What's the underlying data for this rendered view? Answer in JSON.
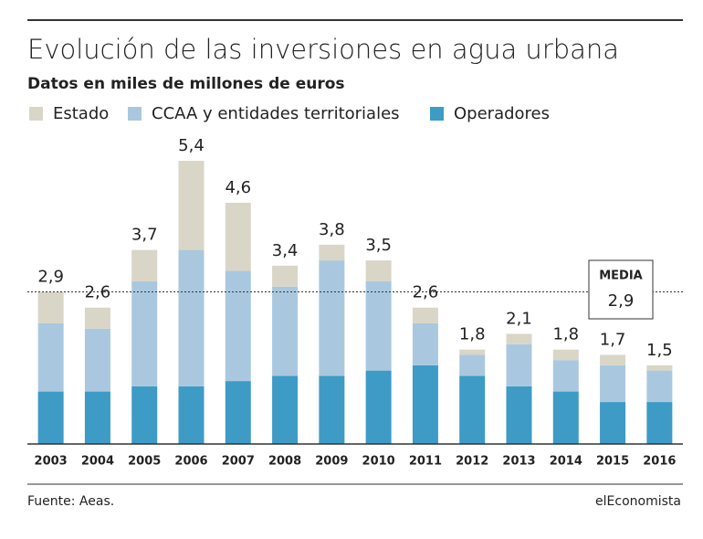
{
  "chart_data": {
    "type": "stacked_bar",
    "title": "Evolución de las inversiones en agua urbana",
    "subtitle": "Datos en miles de millones de euros",
    "categories": [
      "2003",
      "2004",
      "2005",
      "2006",
      "2007",
      "2008",
      "2009",
      "2010",
      "2011",
      "2012",
      "2013",
      "2014",
      "2015",
      "2016"
    ],
    "series": [
      {
        "name": "Operadores",
        "color": "#3d9bc6",
        "values": [
          1.0,
          1.0,
          1.1,
          1.1,
          1.2,
          1.3,
          1.3,
          1.4,
          1.5,
          1.3,
          1.1,
          1.0,
          0.8,
          0.8
        ]
      },
      {
        "name": "CCAA y entidades territoriales",
        "color": "#a9c8df",
        "values": [
          1.3,
          1.2,
          2.0,
          2.6,
          2.1,
          1.7,
          2.2,
          1.7,
          0.8,
          0.4,
          0.8,
          0.6,
          0.7,
          0.6
        ]
      },
      {
        "name": "Estado",
        "color": "#d9d6c8",
        "values": [
          0.6,
          0.4,
          0.6,
          1.7,
          1.3,
          0.4,
          0.3,
          0.4,
          0.3,
          0.1,
          0.2,
          0.2,
          0.2,
          0.1
        ]
      }
    ],
    "totals": [
      2.9,
      2.6,
      3.7,
      5.4,
      4.6,
      3.4,
      3.8,
      3.5,
      2.6,
      1.8,
      2.1,
      1.8,
      1.7,
      1.5
    ],
    "total_labels": [
      "2,9",
      "2,6",
      "3,7",
      "5,4",
      "4,6",
      "3,4",
      "3,8",
      "3,5",
      "2,6",
      "1,8",
      "2,1",
      "1,8",
      "1,7",
      "1,5"
    ],
    "average": {
      "label": "MEDIA",
      "value": 2.9,
      "value_label": "2,9"
    },
    "ylim": [
      0,
      5.4
    ],
    "source": "Fuente: Aeas.",
    "brand": "elEconomista"
  }
}
